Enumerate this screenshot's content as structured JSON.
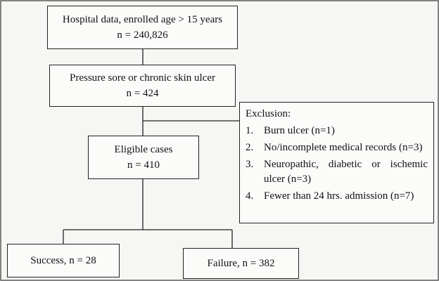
{
  "nodes": [
    {
      "lines": [
        "Hospital data, enrolled age > 15 years",
        "n = 240,826"
      ]
    },
    {
      "lines": [
        "Pressure sore or chronic skin ulcer",
        "n = 424"
      ]
    },
    {
      "lines": [
        "Eligible cases",
        "n = 410"
      ]
    },
    {
      "lines": [
        "Success, n = 28"
      ]
    },
    {
      "lines": [
        "Failure, n = 382"
      ]
    }
  ],
  "exclusion": {
    "title": "Exclusion:",
    "items": [
      {
        "number": "1.",
        "text": "Burn ulcer (n=1)"
      },
      {
        "number": "2.",
        "text": "No/incomplete medical records (n=3)"
      },
      {
        "number": "3.",
        "text": "Neuropathic, diabetic or ischemic ulcer (n=3)"
      },
      {
        "number": "4.",
        "text": "Fewer than 24 hrs. admission (n=7)"
      }
    ]
  }
}
